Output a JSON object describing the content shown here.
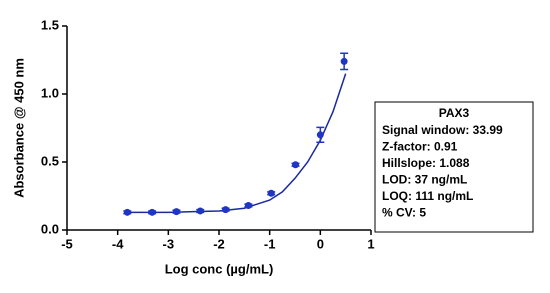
{
  "chart_data": {
    "type": "scatter",
    "y_label": "Absorbance @ 450 nm",
    "x_label": "Log conc (µg/mL)",
    "xlim": [
      -5,
      1
    ],
    "xticks": [
      -5,
      -4,
      -3,
      -2,
      -1,
      0,
      1
    ],
    "ylim": [
      0,
      1.5
    ],
    "yticks": [
      {
        "value": 0,
        "label": "0.0"
      },
      0.5,
      {
        "value": 1,
        "label": "1.0"
      },
      1.5
    ],
    "points": {
      "color": "#1f35c4",
      "x": [
        -3.81,
        -3.32,
        -2.84,
        -2.37,
        -1.87,
        -1.42,
        -0.97,
        -0.49,
        0,
        0.47
      ],
      "values": [
        0.13,
        0.13,
        0.135,
        0.14,
        0.15,
        0.18,
        0.27,
        0.48,
        0.7,
        1.24
      ],
      "errors": [
        0.01,
        0.01,
        0.01,
        0.01,
        0.01,
        0.01,
        0.01,
        0.01,
        0.055,
        0.06
      ]
    },
    "fit": {
      "color": "#1a2a9c",
      "x": [
        -3.8,
        -3,
        -2.5,
        -2,
        -1.5,
        -1,
        -0.75,
        -0.5,
        -0.25,
        0,
        0.25,
        0.5
      ],
      "values": [
        0.13,
        0.13,
        0.135,
        0.14,
        0.16,
        0.22,
        0.28,
        0.38,
        0.5,
        0.66,
        0.87,
        1.15
      ]
    },
    "annotation": {
      "title": "PAX3",
      "lines": [
        "Signal window: 33.99",
        "Z-factor: 0.91",
        "Hillslope: 1.088",
        "LOD: 37 ng/mL",
        "LOQ: 111 ng/mL",
        "% CV: 5"
      ]
    }
  }
}
